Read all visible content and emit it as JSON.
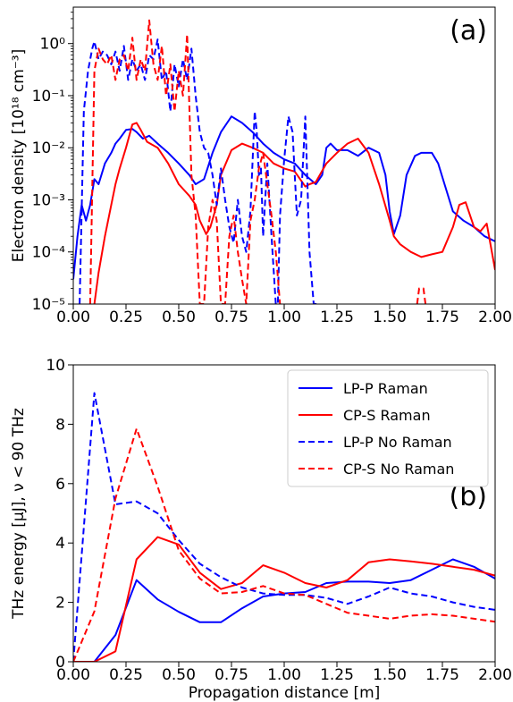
{
  "chart_data": [
    {
      "type": "line",
      "panel_label": "(a)",
      "ylabel": "Electron density [10¹⁸ cm⁻³]",
      "xlabel": "",
      "xlim": [
        0,
        2.0
      ],
      "ylim": [
        1e-05,
        5
      ],
      "yscale": "log",
      "xticks": [
        "0.00",
        "0.25",
        "0.50",
        "0.75",
        "1.00",
        "1.25",
        "1.50",
        "1.75",
        "2.00"
      ],
      "yticks": [
        "10⁻⁵",
        "10⁻⁴",
        "10⁻³",
        "10⁻²",
        "10⁻¹",
        "10⁰"
      ],
      "grid": false,
      "series": [
        {
          "id": "lp-raman",
          "color": "#0000ff",
          "dash": "solid",
          "x": [
            0.0,
            0.02,
            0.04,
            0.06,
            0.08,
            0.1,
            0.12,
            0.15,
            0.18,
            0.2,
            0.22,
            0.25,
            0.28,
            0.3,
            0.33,
            0.36,
            0.4,
            0.45,
            0.5,
            0.55,
            0.58,
            0.62,
            0.66,
            0.7,
            0.75,
            0.8,
            0.85,
            0.9,
            0.95,
            1.0,
            1.05,
            1.1,
            1.15,
            1.18,
            1.2,
            1.22,
            1.25,
            1.3,
            1.35,
            1.4,
            1.45,
            1.48,
            1.5,
            1.52,
            1.55,
            1.58,
            1.62,
            1.65,
            1.7,
            1.73,
            1.76,
            1.8,
            1.85,
            1.9,
            1.95,
            2.0
          ],
          "y": [
            3e-05,
            0.0002,
            0.0008,
            0.0004,
            0.0008,
            0.0025,
            0.002,
            0.005,
            0.008,
            0.012,
            0.015,
            0.022,
            0.023,
            0.02,
            0.015,
            0.017,
            0.012,
            0.008,
            0.005,
            0.003,
            0.002,
            0.0025,
            0.008,
            0.02,
            0.04,
            0.03,
            0.02,
            0.012,
            0.008,
            0.006,
            0.005,
            0.003,
            0.002,
            0.003,
            0.01,
            0.012,
            0.009,
            0.009,
            0.007,
            0.01,
            0.008,
            0.003,
            0.0006,
            0.00022,
            0.0005,
            0.003,
            0.007,
            0.008,
            0.008,
            0.005,
            0.002,
            0.0006,
            0.0004,
            0.0003,
            0.0002,
            0.00016
          ]
        },
        {
          "id": "cp-raman",
          "color": "#ff0000",
          "dash": "solid",
          "x": [
            0.1,
            0.12,
            0.15,
            0.18,
            0.2,
            0.22,
            0.25,
            0.28,
            0.3,
            0.32,
            0.35,
            0.4,
            0.45,
            0.5,
            0.55,
            0.58,
            0.6,
            0.63,
            0.65,
            0.68,
            0.7,
            0.75,
            0.8,
            0.85,
            0.9,
            0.95,
            1.0,
            1.05,
            1.1,
            1.12,
            1.15,
            1.2,
            1.25,
            1.3,
            1.35,
            1.4,
            1.45,
            1.5,
            1.52,
            1.55,
            1.6,
            1.65,
            1.7,
            1.75,
            1.8,
            1.83,
            1.86,
            1.9,
            1.93,
            1.96,
            2.0
          ],
          "y": [
            1e-05,
            4e-05,
            0.0002,
            0.0008,
            0.002,
            0.004,
            0.01,
            0.028,
            0.03,
            0.022,
            0.013,
            0.01,
            0.005,
            0.002,
            0.0012,
            0.0008,
            0.0004,
            0.00022,
            0.0003,
            0.0008,
            0.003,
            0.009,
            0.012,
            0.01,
            0.008,
            0.005,
            0.004,
            0.0035,
            0.0018,
            0.002,
            0.0022,
            0.005,
            0.008,
            0.012,
            0.015,
            0.008,
            0.002,
            0.0004,
            0.0002,
            0.00014,
            0.0001,
            8e-05,
            9e-05,
            0.0001,
            0.0003,
            0.0008,
            0.0009,
            0.0003,
            0.00025,
            0.00035,
            4.5e-05
          ]
        },
        {
          "id": "lp-noraman",
          "color": "#0000ff",
          "dash": "dashed",
          "x": [
            0.03,
            0.05,
            0.07,
            0.09,
            0.1,
            0.12,
            0.14,
            0.16,
            0.18,
            0.2,
            0.22,
            0.24,
            0.26,
            0.28,
            0.3,
            0.32,
            0.34,
            0.36,
            0.38,
            0.4,
            0.42,
            0.44,
            0.46,
            0.48,
            0.5,
            0.52,
            0.54,
            0.56,
            0.58,
            0.6,
            0.62,
            0.64,
            0.66,
            0.68,
            0.7,
            0.72,
            0.74,
            0.76,
            0.78,
            0.8,
            0.82,
            0.84,
            0.86,
            0.87,
            0.88,
            0.89,
            0.9,
            0.92,
            0.94,
            0.96,
            0.97,
            0.98,
            1.0,
            1.02,
            1.04,
            1.05,
            1.06,
            1.08,
            1.1,
            1.11,
            1.12,
            1.14,
            1.16
          ],
          "y": [
            1e-05,
            0.05,
            0.3,
            0.8,
            1.1,
            0.5,
            0.7,
            0.6,
            0.4,
            0.7,
            0.3,
            0.9,
            0.2,
            0.5,
            0.3,
            0.4,
            0.2,
            0.6,
            0.5,
            1.2,
            0.2,
            0.3,
            0.05,
            0.4,
            0.15,
            0.5,
            0.2,
            0.8,
            0.1,
            0.02,
            0.01,
            0.008,
            0.003,
            0.0008,
            0.004,
            0.001,
            0.0003,
            0.00015,
            0.001,
            0.0002,
            0.0001,
            0.0006,
            0.05,
            0.02,
            0.003,
            0.004,
            0.0002,
            0.005,
            0.0002,
            1e-05,
            1e-05,
            0.0005,
            0.006,
            0.04,
            0.02,
            0.003,
            0.0005,
            0.001,
            0.04,
            0.002,
            0.0001,
            1e-05,
            1e-05
          ]
        },
        {
          "id": "cp-noraman",
          "color": "#ff0000",
          "dash": "dashed",
          "x": [
            0.08,
            0.1,
            0.12,
            0.14,
            0.16,
            0.18,
            0.2,
            0.22,
            0.24,
            0.26,
            0.28,
            0.3,
            0.32,
            0.34,
            0.36,
            0.38,
            0.4,
            0.42,
            0.44,
            0.46,
            0.48,
            0.5,
            0.52,
            0.54,
            0.56,
            0.58,
            0.6,
            0.62,
            0.64,
            0.66,
            0.68,
            0.7,
            0.72,
            0.74,
            0.76,
            0.78,
            0.8,
            0.82,
            0.84,
            0.86,
            0.88,
            0.9,
            0.92,
            0.94,
            0.96,
            0.98
          ],
          "y": [
            1e-05,
            0.3,
            0.8,
            0.5,
            0.4,
            0.6,
            0.2,
            0.5,
            0.6,
            0.3,
            1.3,
            0.2,
            0.5,
            0.3,
            2.8,
            0.4,
            0.2,
            0.9,
            0.1,
            0.4,
            0.05,
            0.3,
            0.1,
            1.5,
            0.003,
            0.0005,
            1e-05,
            1e-05,
            0.0003,
            0.001,
            0.0004,
            1e-05,
            1e-05,
            0.0002,
            0.0005,
            0.0001,
            3e-05,
            1e-05,
            0.0004,
            0.001,
            0.004,
            0.008,
            0.002,
            0.0005,
            0.0001,
            1e-05
          ]
        },
        {
          "id": "cp-noraman-b",
          "color": "#ff0000",
          "dash": "dashed",
          "x": [
            1.63,
            1.64,
            1.66,
            1.67
          ],
          "y": [
            1e-05,
            2e-05,
            2e-05,
            1e-05
          ]
        }
      ]
    },
    {
      "type": "line",
      "panel_label": "(b)",
      "xlabel": "Propagation distance [m]",
      "ylabel": "THz energy [μJ], ν < 90 THz",
      "xlim": [
        0,
        2.0
      ],
      "ylim": [
        0,
        10
      ],
      "xticks": [
        "0.00",
        "0.25",
        "0.50",
        "0.75",
        "1.00",
        "1.25",
        "1.50",
        "1.75",
        "2.00"
      ],
      "yticks": [
        "0",
        "2",
        "4",
        "6",
        "8",
        "10"
      ],
      "grid": false,
      "legend_position": "top-right",
      "series": [
        {
          "name": "LP-P Raman",
          "color": "#0000ff",
          "dash": "solid",
          "x": [
            0.0,
            0.1,
            0.2,
            0.3,
            0.4,
            0.5,
            0.6,
            0.7,
            0.8,
            0.9,
            1.0,
            1.1,
            1.2,
            1.3,
            1.4,
            1.5,
            1.6,
            1.7,
            1.8,
            1.9,
            2.0
          ],
          "y": [
            0.0,
            0.0,
            0.9,
            2.75,
            2.1,
            1.68,
            1.33,
            1.33,
            1.8,
            2.2,
            2.3,
            2.35,
            2.65,
            2.7,
            2.7,
            2.65,
            2.75,
            3.1,
            3.45,
            3.2,
            2.8
          ]
        },
        {
          "name": "CP-S Raman",
          "color": "#ff0000",
          "dash": "solid",
          "x": [
            0.0,
            0.1,
            0.2,
            0.3,
            0.4,
            0.5,
            0.6,
            0.7,
            0.8,
            0.9,
            1.0,
            1.1,
            1.2,
            1.3,
            1.4,
            1.5,
            1.6,
            1.7,
            1.8,
            1.9,
            2.0
          ],
          "y": [
            0.0,
            0.0,
            0.35,
            3.45,
            4.2,
            3.95,
            3.0,
            2.45,
            2.65,
            3.25,
            3.0,
            2.65,
            2.5,
            2.75,
            3.35,
            3.45,
            3.38,
            3.3,
            3.2,
            3.1,
            2.9
          ]
        },
        {
          "name": "LP-P No Raman",
          "color": "#0000ff",
          "dash": "dashed",
          "x": [
            0.0,
            0.1,
            0.2,
            0.3,
            0.4,
            0.5,
            0.6,
            0.7,
            0.8,
            0.9,
            1.0,
            1.1,
            1.2,
            1.3,
            1.4,
            1.5,
            1.6,
            1.7,
            1.8,
            1.9,
            2.0
          ],
          "y": [
            0.0,
            9.05,
            5.3,
            5.4,
            5.0,
            4.1,
            3.3,
            2.85,
            2.5,
            2.3,
            2.25,
            2.25,
            2.15,
            1.95,
            2.2,
            2.5,
            2.3,
            2.2,
            2.0,
            1.85,
            1.75
          ]
        },
        {
          "name": "CP-S No Raman",
          "color": "#ff0000",
          "dash": "dashed",
          "x": [
            0.0,
            0.1,
            0.2,
            0.3,
            0.4,
            0.5,
            0.6,
            0.7,
            0.8,
            0.9,
            1.0,
            1.1,
            1.2,
            1.3,
            1.4,
            1.5,
            1.6,
            1.7,
            1.8,
            1.9,
            2.0
          ],
          "y": [
            0.0,
            1.7,
            5.5,
            7.85,
            5.9,
            3.75,
            2.8,
            2.3,
            2.35,
            2.55,
            2.3,
            2.25,
            1.95,
            1.65,
            1.55,
            1.45,
            1.55,
            1.6,
            1.55,
            1.45,
            1.35
          ]
        }
      ]
    }
  ]
}
